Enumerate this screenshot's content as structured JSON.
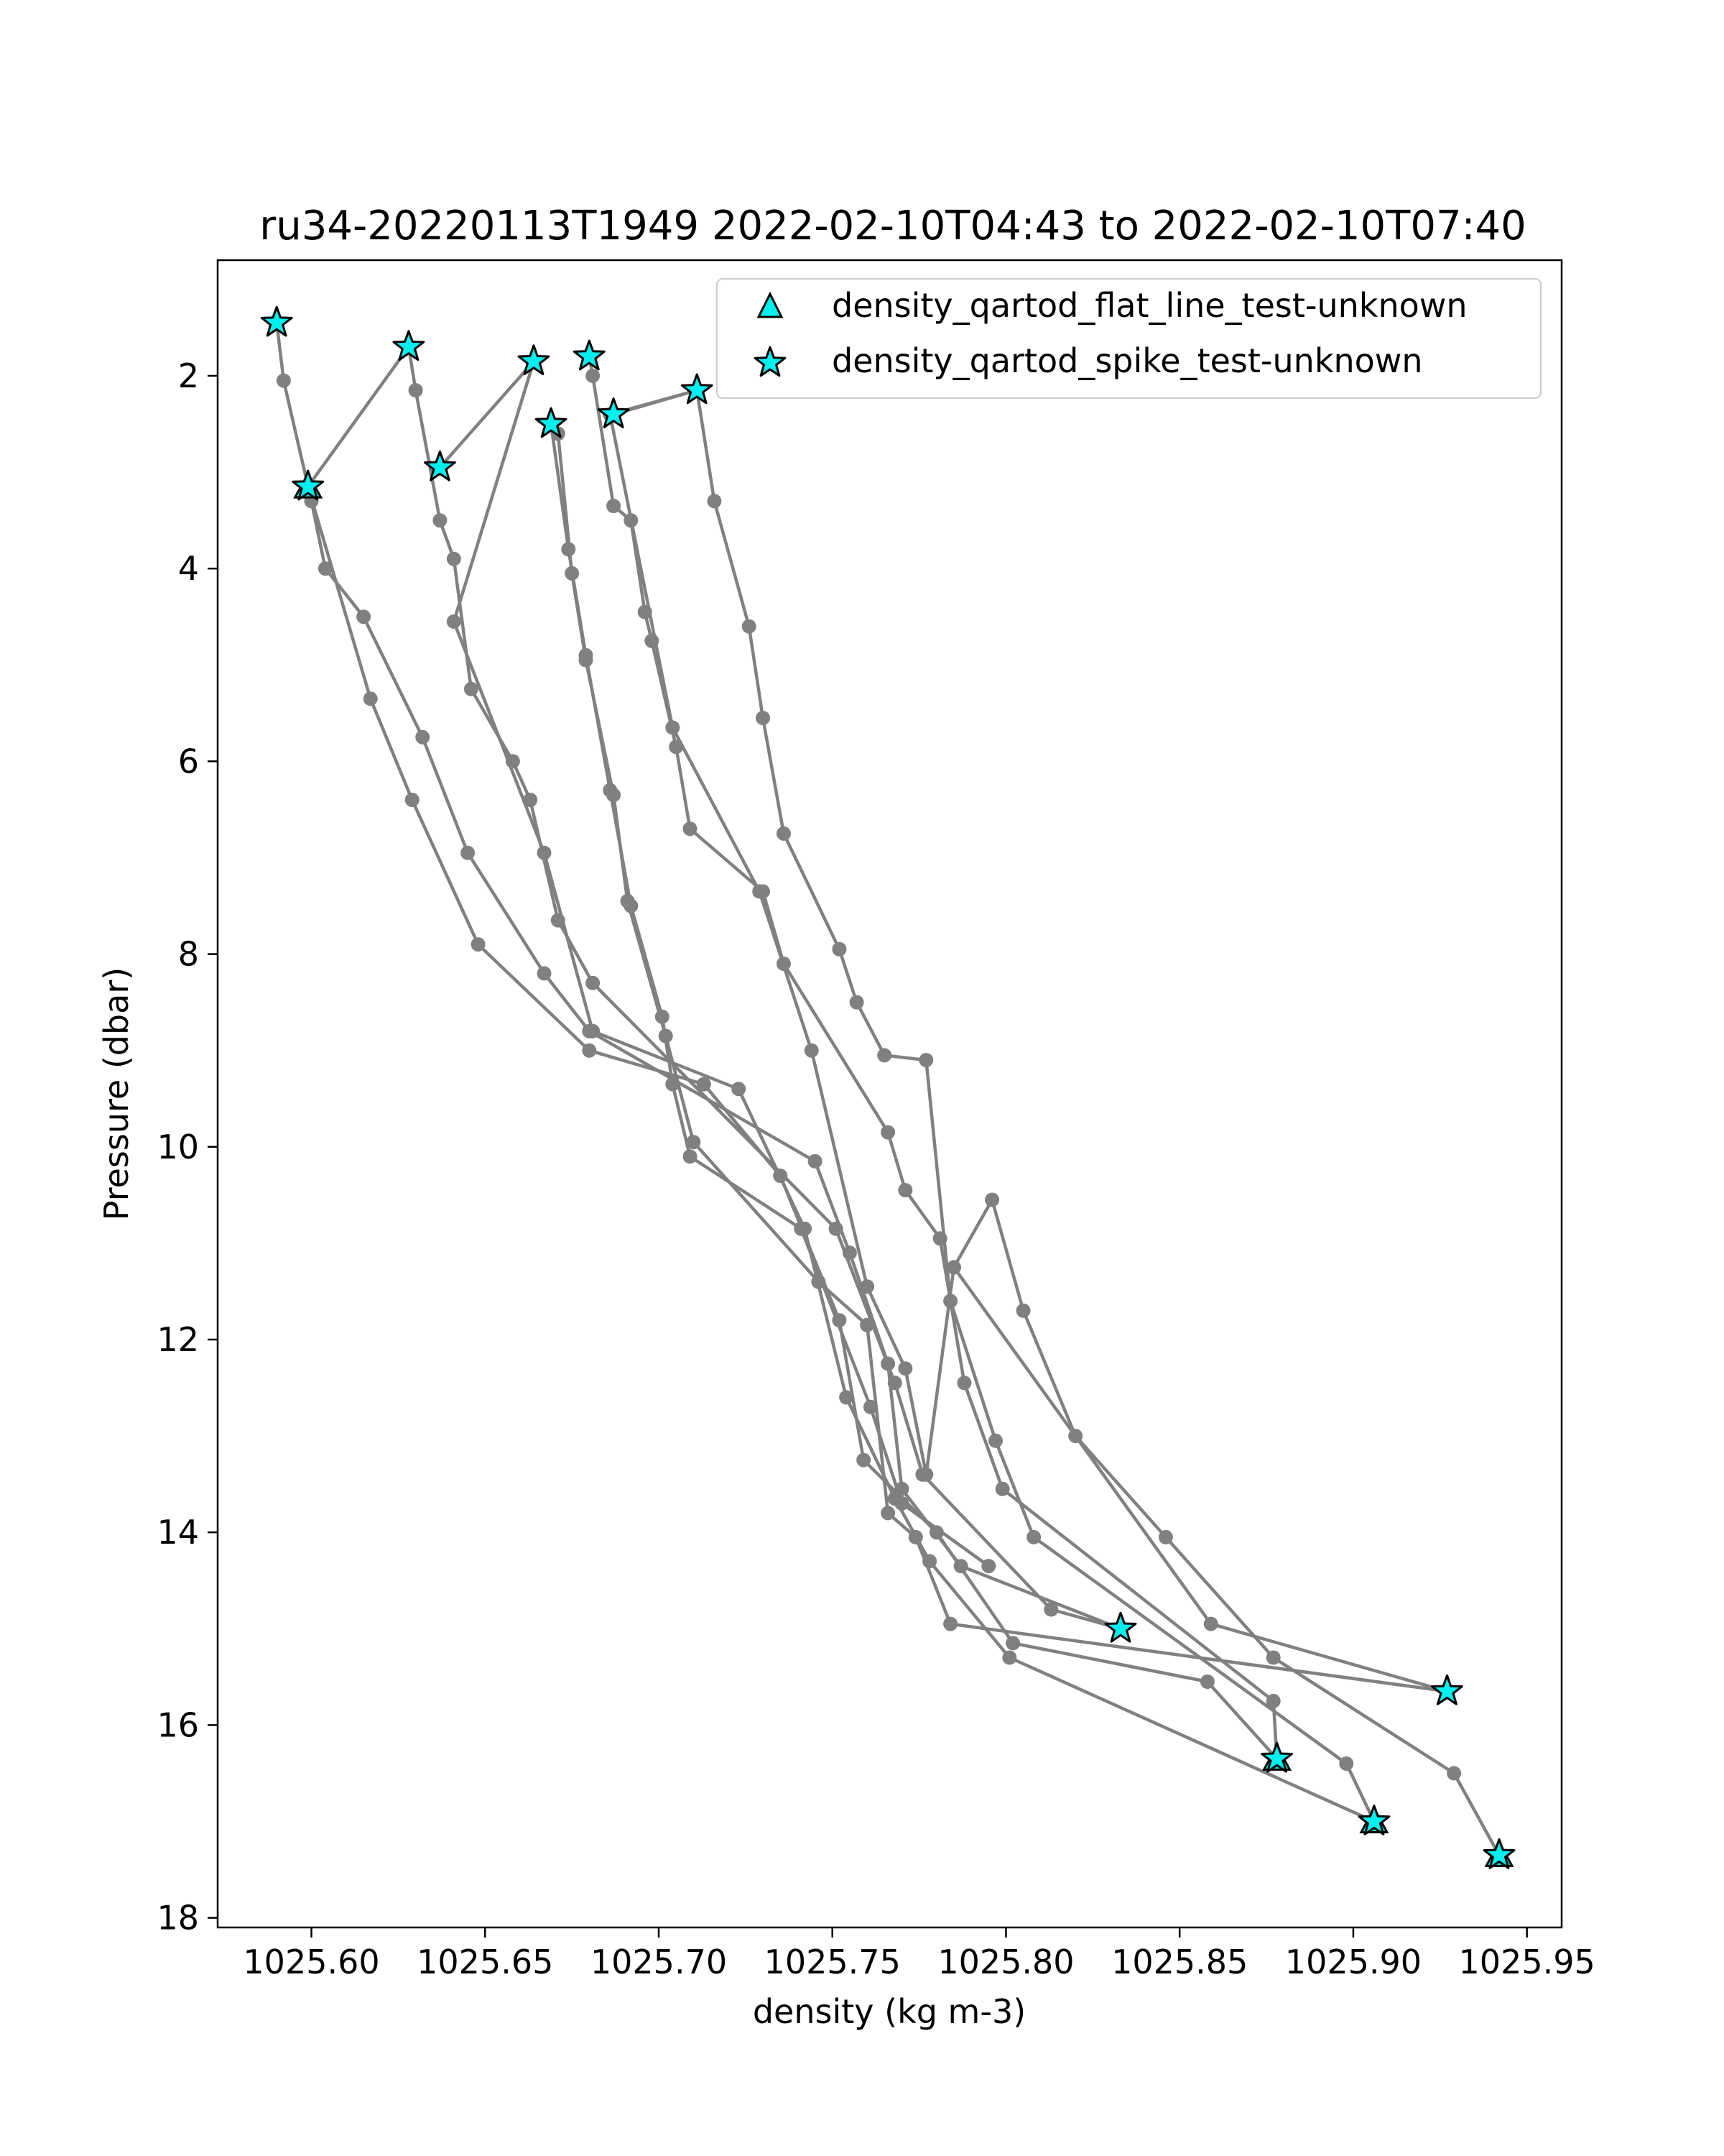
{
  "chart_data": {
    "type": "line",
    "title": "ru34-20220113T1949 2022-02-10T04:43 to 2022-02-10T07:40",
    "xlabel": "density (kg m-3)",
    "ylabel": "Pressure (dbar)",
    "xlim": [
      1025.573,
      1025.96
    ],
    "ylim": [
      18.1,
      0.8
    ],
    "y_inverted": true,
    "grid": false,
    "legend_position": "upper-right",
    "xticks": [
      "1025.60",
      "1025.65",
      "1025.70",
      "1025.75",
      "1025.80",
      "1025.85",
      "1025.90",
      "1025.95"
    ],
    "xtick_values": [
      1025.6,
      1025.65,
      1025.7,
      1025.75,
      1025.8,
      1025.85,
      1025.9,
      1025.95
    ],
    "yticks": [
      "2",
      "4",
      "6",
      "8",
      "10",
      "12",
      "14",
      "16",
      "18"
    ],
    "ytick_values": [
      2,
      4,
      6,
      8,
      10,
      12,
      14,
      16,
      18
    ],
    "line_color": "#808080",
    "marker_color": "#808080",
    "flag_color": "#00f0f0",
    "legend": [
      {
        "label": "density_qartod_flat_line_test-unknown",
        "marker": "triangle"
      },
      {
        "label": "density_qartod_spike_test-unknown",
        "marker": "star"
      }
    ],
    "series": [
      {
        "x": [
          1025.59,
          1025.592,
          1025.6,
          1025.604,
          1025.615,
          1025.632,
          1025.645,
          1025.667,
          1025.68,
          1025.745,
          1025.755,
          1025.766,
          1025.77,
          1025.787,
          1025.833
        ],
        "y": [
          1.45,
          2.05,
          3.3,
          4.0,
          4.5,
          5.75,
          6.95,
          8.2,
          8.8,
          10.15,
          11.1,
          12.25,
          13.55,
          14.35,
          15.0
        ]
      },
      {
        "x": [
          1025.599,
          1025.617,
          1025.629,
          1025.648,
          1025.68,
          1025.713,
          1025.735,
          1025.752,
          1025.759,
          1025.78,
          1025.802,
          1025.858,
          1025.878
        ],
        "y": [
          3.15,
          5.35,
          6.4,
          7.9,
          9.0,
          9.35,
          10.3,
          11.8,
          13.25,
          14.0,
          15.15,
          15.55,
          16.35
        ]
      },
      {
        "x": [
          1025.599,
          1025.628,
          1025.63,
          1025.637,
          1025.641,
          1025.646,
          1025.658,
          1025.663,
          1025.671,
          1025.681,
          1025.751,
          1025.768,
          1025.776,
          1025.813,
          1025.833
        ],
        "y": [
          3.15,
          1.7,
          2.15,
          3.5,
          3.9,
          5.25,
          6.0,
          6.4,
          7.65,
          8.3,
          10.85,
          12.45,
          13.4,
          14.8,
          15.0
        ]
      },
      {
        "x": [
          1025.637,
          1025.664,
          1025.641,
          1025.667,
          1025.681,
          1025.723,
          1025.742,
          1025.754,
          1025.768,
          1025.778,
          1025.801,
          1025.906
        ],
        "y": [
          2.95,
          1.85,
          4.55,
          6.95,
          8.8,
          9.4,
          10.85,
          12.6,
          13.65,
          14.3,
          15.3,
          17.0
        ]
      },
      {
        "x": [
          1025.669,
          1025.674,
          1025.679,
          1025.686,
          1025.692,
          1025.701,
          1025.704,
          1025.709,
          1025.741,
          1025.761,
          1025.77,
          1025.795
        ],
        "y": [
          2.5,
          3.8,
          4.9,
          6.3,
          7.5,
          8.65,
          9.35,
          10.1,
          10.85,
          12.7,
          13.7,
          14.35
        ]
      },
      {
        "x": [
          1025.669,
          1025.671,
          1025.675,
          1025.679,
          1025.687,
          1025.691,
          1025.702,
          1025.71,
          1025.746,
          1025.76,
          1025.766,
          1025.774,
          1025.784,
          1025.927
        ],
        "y": [
          2.5,
          2.6,
          4.05,
          4.95,
          6.35,
          7.45,
          8.85,
          9.95,
          11.4,
          11.85,
          13.8,
          14.05,
          14.95,
          15.65
        ]
      },
      {
        "x": [
          1025.68,
          1025.681,
          1025.687,
          1025.692,
          1025.696,
          1025.698,
          1025.705,
          1025.709,
          1025.73,
          1025.736,
          1025.766,
          1025.771,
          1025.781,
          1025.788,
          1025.799,
          1025.877,
          1025.878
        ],
        "y": [
          1.8,
          2.0,
          3.35,
          3.5,
          4.45,
          4.75,
          5.85,
          6.7,
          7.35,
          8.1,
          9.85,
          10.45,
          10.95,
          12.45,
          13.55,
          15.75,
          16.35
        ]
      },
      {
        "x": [
          1025.687,
          1025.711,
          1025.716,
          1025.726,
          1025.73,
          1025.736,
          1025.752,
          1025.757,
          1025.765,
          1025.777,
          1025.784,
          1025.797,
          1025.808,
          1025.898,
          1025.906
        ],
        "y": [
          2.4,
          2.15,
          3.3,
          4.6,
          5.55,
          6.75,
          7.95,
          8.5,
          9.05,
          9.1,
          11.6,
          13.05,
          14.05,
          16.4,
          17.0
        ]
      },
      {
        "x": [
          1025.711,
          1025.686,
          1025.704,
          1025.729,
          1025.744,
          1025.76,
          1025.771,
          1025.777,
          1025.785,
          1025.796,
          1025.805,
          1025.82,
          1025.846,
          1025.877,
          1025.929,
          1025.942
        ],
        "y": [
          2.15,
          2.4,
          5.65,
          7.35,
          9.0,
          11.45,
          12.3,
          13.4,
          11.25,
          10.55,
          11.7,
          13.0,
          14.05,
          15.3,
          16.5,
          17.35
        ]
      },
      {
        "x": [
          1025.785,
          1025.859,
          1025.927
        ],
        "y": [
          11.25,
          14.95,
          15.65
        ]
      }
    ],
    "flagged_points": [
      {
        "x": 1025.59,
        "y": 1.45,
        "test": "spike"
      },
      {
        "x": 1025.628,
        "y": 1.7,
        "test": "spike"
      },
      {
        "x": 1025.599,
        "y": 3.15,
        "test": "spike"
      },
      {
        "x": 1025.664,
        "y": 1.85,
        "test": "spike"
      },
      {
        "x": 1025.637,
        "y": 2.95,
        "test": "spike"
      },
      {
        "x": 1025.68,
        "y": 1.8,
        "test": "spike"
      },
      {
        "x": 1025.669,
        "y": 2.5,
        "test": "spike"
      },
      {
        "x": 1025.687,
        "y": 2.4,
        "test": "spike"
      },
      {
        "x": 1025.711,
        "y": 2.15,
        "test": "spike"
      },
      {
        "x": 1025.833,
        "y": 15.0,
        "test": "spike"
      },
      {
        "x": 1025.927,
        "y": 15.65,
        "test": "spike"
      },
      {
        "x": 1025.878,
        "y": 16.35,
        "test": "spike"
      },
      {
        "x": 1025.906,
        "y": 17.0,
        "test": "spike"
      },
      {
        "x": 1025.942,
        "y": 17.35,
        "test": "spike"
      },
      {
        "x": 1025.599,
        "y": 3.15,
        "test": "flat_line"
      },
      {
        "x": 1025.878,
        "y": 16.35,
        "test": "flat_line"
      },
      {
        "x": 1025.906,
        "y": 17.0,
        "test": "flat_line"
      },
      {
        "x": 1025.942,
        "y": 17.35,
        "test": "flat_line"
      }
    ]
  }
}
